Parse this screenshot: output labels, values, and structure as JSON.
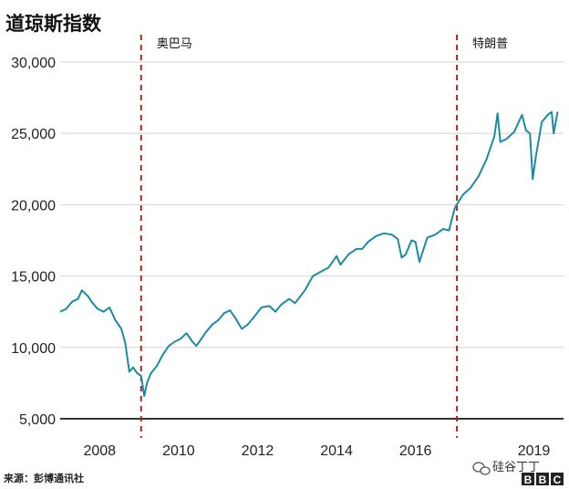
{
  "chart_data": {
    "type": "line",
    "title": "道琼斯指数",
    "source": "来源：彭博通讯社",
    "ylim": [
      5000,
      30000
    ],
    "xlim": [
      2007.0,
      2019.75
    ],
    "y_ticks": [
      5000,
      10000,
      15000,
      20000,
      25000,
      30000
    ],
    "y_tick_labels": [
      "5,000",
      "10,000",
      "15,000",
      "20,000",
      "25,000",
      "30,000"
    ],
    "x_ticks": [
      2008,
      2010,
      2012,
      2014,
      2016,
      2019
    ],
    "x_tick_labels": [
      "2008",
      "2010",
      "2012",
      "2014",
      "2016",
      "2019"
    ],
    "grid": true,
    "series": [
      {
        "color": "#1b8ba3",
        "x": [
          2007.0,
          2007.15,
          2007.3,
          2007.45,
          2007.55,
          2007.7,
          2007.8,
          2007.95,
          2008.1,
          2008.25,
          2008.4,
          2008.55,
          2008.65,
          2008.75,
          2008.85,
          2008.95,
          2009.05,
          2009.13,
          2009.2,
          2009.3,
          2009.45,
          2009.6,
          2009.75,
          2009.9,
          2010.05,
          2010.2,
          2010.35,
          2010.45,
          2010.55,
          2010.7,
          2010.85,
          2011.0,
          2011.15,
          2011.3,
          2011.45,
          2011.6,
          2011.75,
          2011.9,
          2012.1,
          2012.3,
          2012.45,
          2012.6,
          2012.8,
          2012.95,
          2013.2,
          2013.4,
          2013.6,
          2013.8,
          2014.0,
          2014.1,
          2014.3,
          2014.5,
          2014.65,
          2014.8,
          2015.0,
          2015.2,
          2015.4,
          2015.55,
          2015.65,
          2015.75,
          2015.9,
          2016.0,
          2016.1,
          2016.3,
          2016.5,
          2016.7,
          2016.85,
          2017.0,
          2017.2,
          2017.4,
          2017.6,
          2017.8,
          2018.0,
          2018.08,
          2018.15,
          2018.3,
          2018.5,
          2018.7,
          2018.8,
          2018.9,
          2018.97,
          2019.05,
          2019.2,
          2019.35,
          2019.45,
          2019.5,
          2019.6
        ],
        "y": [
          12500,
          12700,
          13200,
          13400,
          14000,
          13600,
          13200,
          12700,
          12500,
          12800,
          11900,
          11300,
          10300,
          8300,
          8600,
          8200,
          8000,
          6600,
          7500,
          8200,
          8700,
          9500,
          10100,
          10400,
          10600,
          11000,
          10400,
          10100,
          10500,
          11100,
          11600,
          11900,
          12400,
          12600,
          12000,
          11300,
          11600,
          12100,
          12800,
          12900,
          12500,
          13000,
          13400,
          13100,
          14000,
          15000,
          15300,
          15600,
          16400,
          15800,
          16500,
          16900,
          16900,
          17400,
          17800,
          18000,
          17900,
          17600,
          16300,
          16500,
          17500,
          17400,
          16000,
          17700,
          17900,
          18300,
          18200,
          19800,
          20700,
          21200,
          22000,
          23200,
          24800,
          26400,
          24400,
          24600,
          25100,
          26300,
          25200,
          25000,
          21800,
          23400,
          25800,
          26300,
          26500,
          25000,
          26500
        ]
      }
    ],
    "annotations": [
      {
        "label": "奥巴马",
        "x": 2009.05
      },
      {
        "label": "特朗普",
        "x": 2017.05
      }
    ]
  },
  "watermark": "硅谷丁丁",
  "logo": {
    "letters": [
      "B",
      "B",
      "C"
    ]
  }
}
